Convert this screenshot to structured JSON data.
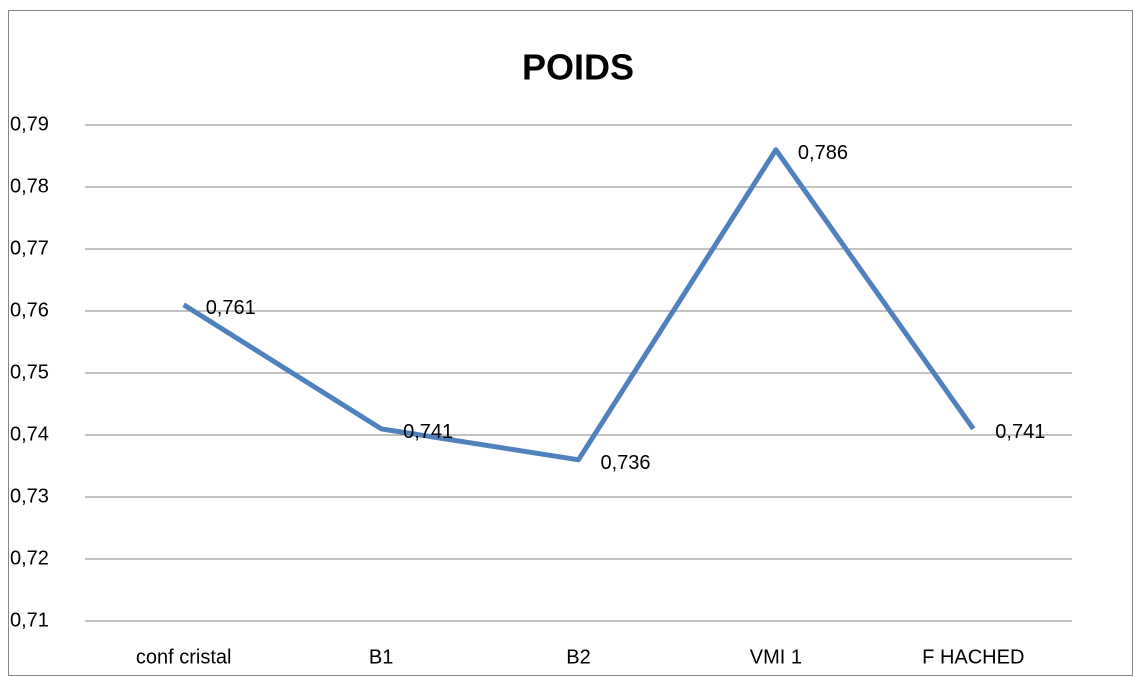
{
  "chart_data": {
    "type": "line",
    "title": "POIDS",
    "categories": [
      "conf cristal",
      "B1",
      "B2",
      "VMI 1",
      "F HACHED"
    ],
    "series": [
      {
        "name": "POIDS",
        "color": "#4f81bd",
        "values": [
          0.761,
          0.741,
          0.736,
          0.786,
          0.741
        ],
        "value_labels": [
          "0,761",
          "0,741",
          "0,736",
          "0,786",
          "0,741"
        ]
      }
    ],
    "ylim": [
      0.71,
      0.79
    ],
    "yticks": [
      {
        "value": 0.71,
        "label": "0,71"
      },
      {
        "value": 0.72,
        "label": "0,72"
      },
      {
        "value": 0.73,
        "label": "0,73"
      },
      {
        "value": 0.74,
        "label": "0,74"
      },
      {
        "value": 0.75,
        "label": "0,75"
      },
      {
        "value": 0.76,
        "label": "0,76"
      },
      {
        "value": 0.77,
        "label": "0,77"
      },
      {
        "value": 0.78,
        "label": "0,78"
      },
      {
        "value": 0.79,
        "label": "0,79"
      }
    ],
    "grid": true
  }
}
